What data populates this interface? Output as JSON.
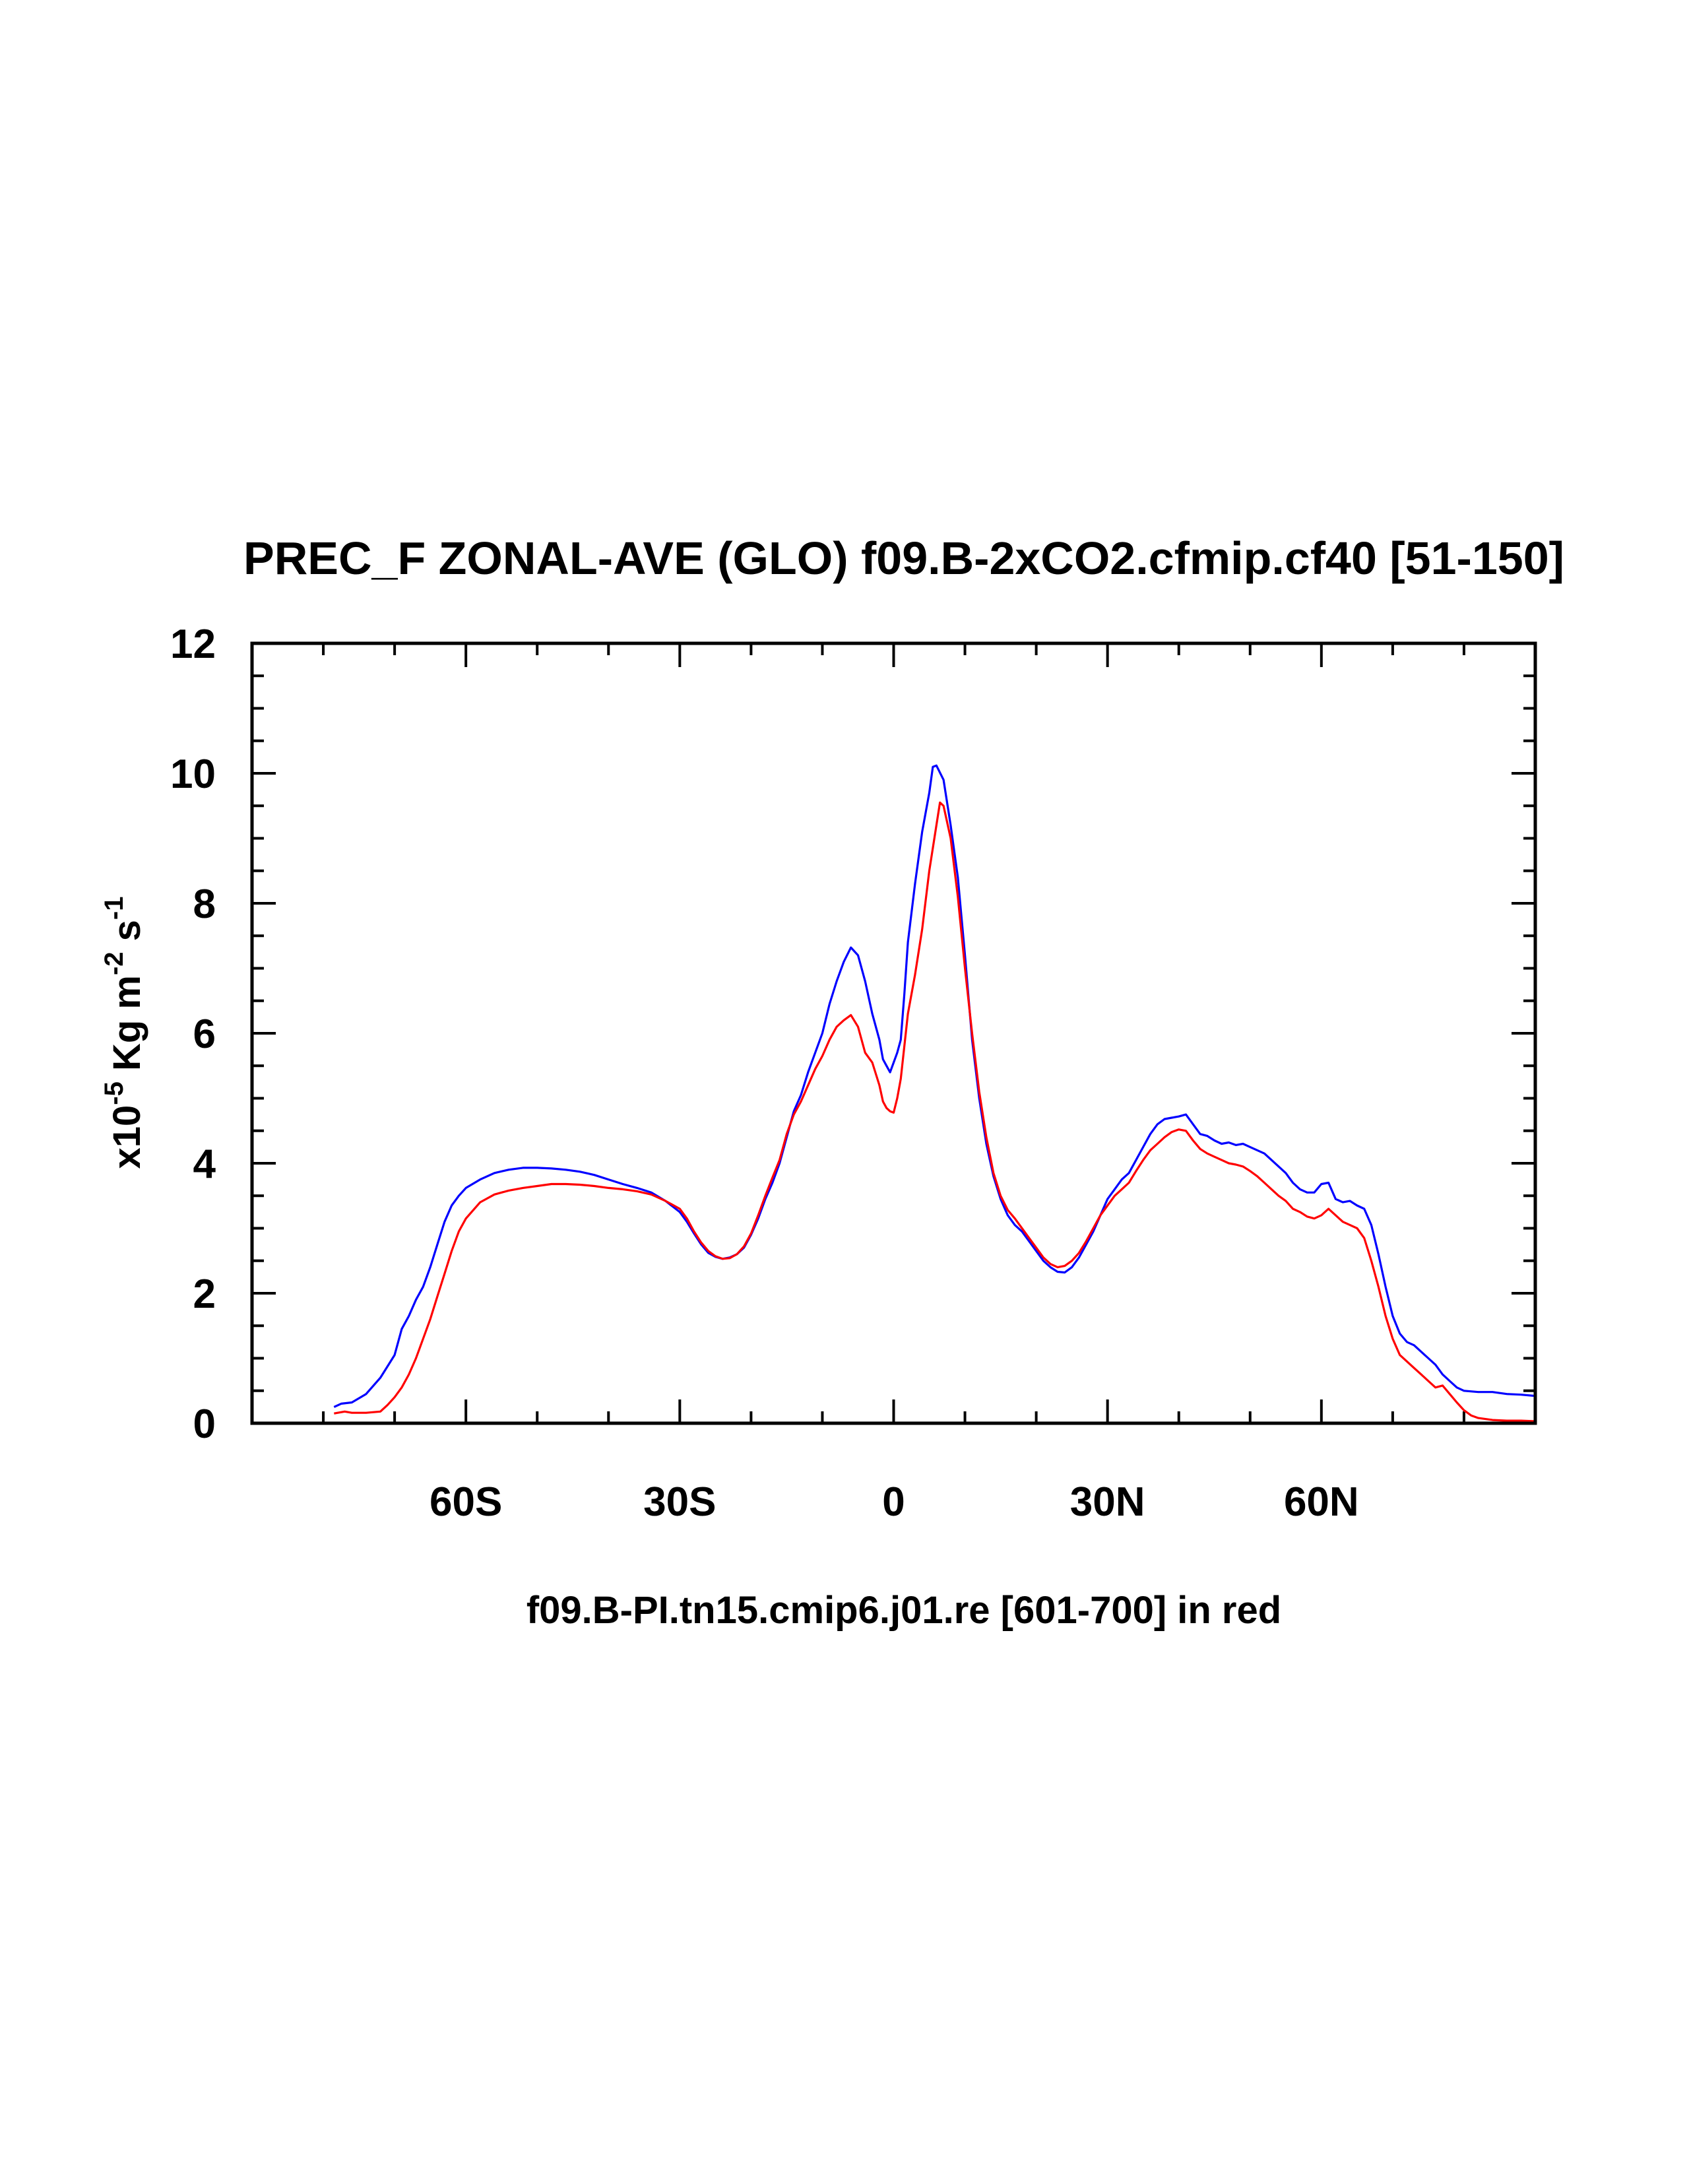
{
  "chart_data": {
    "type": "line",
    "title": "PREC_F ZONAL-AVE (GLO) f09.B-2xCO2.cfmip.cf40 [51-150]",
    "ylabel_parts": {
      "prefix": "x10",
      "exp1": "-5",
      "mid": " Kg m",
      "exp2": "-2",
      "mid2": " s",
      "exp3": "-1"
    },
    "xlabel": "f09.B-PI.tn15.cmip6.j01.re [601-700] in red",
    "xlim": [
      -90,
      90
    ],
    "ylim": [
      0,
      12
    ],
    "x_ticks": [
      {
        "value": -60,
        "label": "60S"
      },
      {
        "value": -30,
        "label": "30S"
      },
      {
        "value": 0,
        "label": "0"
      },
      {
        "value": 30,
        "label": "30N"
      },
      {
        "value": 60,
        "label": "60N"
      }
    ],
    "y_ticks": [
      {
        "value": 0,
        "label": "0"
      },
      {
        "value": 2,
        "label": "2"
      },
      {
        "value": 4,
        "label": "4"
      },
      {
        "value": 6,
        "label": "6"
      },
      {
        "value": 8,
        "label": "8"
      },
      {
        "value": 10,
        "label": "10"
      },
      {
        "value": 12,
        "label": "12"
      }
    ],
    "grid": false,
    "series": [
      {
        "color": "#0000ff",
        "points": [
          [
            -78.5,
            0.25
          ],
          [
            -77.5,
            0.3
          ],
          [
            -76,
            0.32
          ],
          [
            -74,
            0.45
          ],
          [
            -72,
            0.7
          ],
          [
            -70,
            1.05
          ],
          [
            -69,
            1.45
          ],
          [
            -68,
            1.65
          ],
          [
            -67,
            1.9
          ],
          [
            -66,
            2.1
          ],
          [
            -65,
            2.4
          ],
          [
            -64,
            2.75
          ],
          [
            -63,
            3.1
          ],
          [
            -62,
            3.35
          ],
          [
            -61,
            3.5
          ],
          [
            -60,
            3.62
          ],
          [
            -58,
            3.75
          ],
          [
            -56,
            3.85
          ],
          [
            -54,
            3.9
          ],
          [
            -52,
            3.93
          ],
          [
            -50,
            3.93
          ],
          [
            -48,
            3.92
          ],
          [
            -46,
            3.9
          ],
          [
            -44,
            3.87
          ],
          [
            -42,
            3.82
          ],
          [
            -40,
            3.75
          ],
          [
            -38,
            3.68
          ],
          [
            -36,
            3.62
          ],
          [
            -34,
            3.55
          ],
          [
            -32,
            3.42
          ],
          [
            -30,
            3.25
          ],
          [
            -29,
            3.1
          ],
          [
            -28,
            2.92
          ],
          [
            -27,
            2.75
          ],
          [
            -26,
            2.62
          ],
          [
            -25,
            2.56
          ],
          [
            -24,
            2.53
          ],
          [
            -23,
            2.55
          ],
          [
            -22,
            2.6
          ],
          [
            -21,
            2.7
          ],
          [
            -20,
            2.9
          ],
          [
            -19,
            3.15
          ],
          [
            -18,
            3.45
          ],
          [
            -17,
            3.7
          ],
          [
            -16,
            4.0
          ],
          [
            -15,
            4.4
          ],
          [
            -14,
            4.8
          ],
          [
            -13,
            5.05
          ],
          [
            -12,
            5.4
          ],
          [
            -11,
            5.7
          ],
          [
            -10,
            6.0
          ],
          [
            -9,
            6.45
          ],
          [
            -8,
            6.8
          ],
          [
            -7,
            7.1
          ],
          [
            -6,
            7.32
          ],
          [
            -5,
            7.2
          ],
          [
            -4,
            6.8
          ],
          [
            -3,
            6.3
          ],
          [
            -2,
            5.9
          ],
          [
            -1.5,
            5.6
          ],
          [
            -1,
            5.5
          ],
          [
            -0.5,
            5.4
          ],
          [
            0,
            5.55
          ],
          [
            0.5,
            5.7
          ],
          [
            1,
            5.9
          ],
          [
            1.5,
            6.6
          ],
          [
            2,
            7.4
          ],
          [
            3,
            8.3
          ],
          [
            4,
            9.1
          ],
          [
            5,
            9.7
          ],
          [
            5.5,
            10.1
          ],
          [
            6,
            10.12
          ],
          [
            7,
            9.9
          ],
          [
            8,
            9.2
          ],
          [
            9,
            8.4
          ],
          [
            10,
            7.2
          ],
          [
            11,
            5.9
          ],
          [
            12,
            5.0
          ],
          [
            13,
            4.3
          ],
          [
            14,
            3.8
          ],
          [
            15,
            3.45
          ],
          [
            16,
            3.2
          ],
          [
            17,
            3.05
          ],
          [
            18,
            2.95
          ],
          [
            19,
            2.8
          ],
          [
            20,
            2.65
          ],
          [
            21,
            2.5
          ],
          [
            22,
            2.4
          ],
          [
            23,
            2.33
          ],
          [
            24,
            2.32
          ],
          [
            25,
            2.4
          ],
          [
            26,
            2.55
          ],
          [
            27,
            2.75
          ],
          [
            28,
            2.95
          ],
          [
            29,
            3.2
          ],
          [
            30,
            3.45
          ],
          [
            31,
            3.6
          ],
          [
            32,
            3.75
          ],
          [
            33,
            3.85
          ],
          [
            34,
            4.05
          ],
          [
            35,
            4.25
          ],
          [
            36,
            4.45
          ],
          [
            37,
            4.6
          ],
          [
            38,
            4.68
          ],
          [
            39,
            4.7
          ],
          [
            40,
            4.72
          ],
          [
            41,
            4.75
          ],
          [
            42,
            4.6
          ],
          [
            43,
            4.45
          ],
          [
            44,
            4.42
          ],
          [
            45,
            4.35
          ],
          [
            46,
            4.3
          ],
          [
            47,
            4.32
          ],
          [
            48,
            4.28
          ],
          [
            49,
            4.3
          ],
          [
            50,
            4.25
          ],
          [
            51,
            4.2
          ],
          [
            52,
            4.15
          ],
          [
            53,
            4.05
          ],
          [
            54,
            3.95
          ],
          [
            55,
            3.85
          ],
          [
            56,
            3.7
          ],
          [
            57,
            3.6
          ],
          [
            58,
            3.55
          ],
          [
            59,
            3.55
          ],
          [
            60,
            3.68
          ],
          [
            61,
            3.7
          ],
          [
            62,
            3.45
          ],
          [
            63,
            3.4
          ],
          [
            64,
            3.42
          ],
          [
            65,
            3.35
          ],
          [
            66,
            3.3
          ],
          [
            67,
            3.05
          ],
          [
            68,
            2.6
          ],
          [
            69,
            2.1
          ],
          [
            70,
            1.65
          ],
          [
            71,
            1.38
          ],
          [
            72,
            1.25
          ],
          [
            73,
            1.2
          ],
          [
            74,
            1.1
          ],
          [
            75,
            1.0
          ],
          [
            76,
            0.9
          ],
          [
            77,
            0.75
          ],
          [
            78,
            0.65
          ],
          [
            79,
            0.55
          ],
          [
            80,
            0.5
          ],
          [
            82,
            0.48
          ],
          [
            84,
            0.48
          ],
          [
            86,
            0.45
          ],
          [
            88,
            0.44
          ],
          [
            90,
            0.42
          ]
        ]
      },
      {
        "color": "#ff0000",
        "points": [
          [
            -78.5,
            0.15
          ],
          [
            -77,
            0.18
          ],
          [
            -76,
            0.16
          ],
          [
            -74,
            0.16
          ],
          [
            -72,
            0.18
          ],
          [
            -71,
            0.28
          ],
          [
            -70,
            0.4
          ],
          [
            -69,
            0.55
          ],
          [
            -68,
            0.75
          ],
          [
            -67,
            1.0
          ],
          [
            -66,
            1.3
          ],
          [
            -65,
            1.6
          ],
          [
            -64,
            1.95
          ],
          [
            -63,
            2.3
          ],
          [
            -62,
            2.65
          ],
          [
            -61,
            2.95
          ],
          [
            -60,
            3.15
          ],
          [
            -58,
            3.4
          ],
          [
            -56,
            3.52
          ],
          [
            -54,
            3.58
          ],
          [
            -52,
            3.62
          ],
          [
            -50,
            3.65
          ],
          [
            -48,
            3.68
          ],
          [
            -46,
            3.68
          ],
          [
            -44,
            3.67
          ],
          [
            -42,
            3.65
          ],
          [
            -40,
            3.62
          ],
          [
            -38,
            3.6
          ],
          [
            -36,
            3.57
          ],
          [
            -34,
            3.52
          ],
          [
            -32,
            3.42
          ],
          [
            -30,
            3.3
          ],
          [
            -29,
            3.15
          ],
          [
            -28,
            2.95
          ],
          [
            -27,
            2.78
          ],
          [
            -26,
            2.65
          ],
          [
            -25,
            2.57
          ],
          [
            -24,
            2.53
          ],
          [
            -23,
            2.54
          ],
          [
            -22,
            2.6
          ],
          [
            -21,
            2.72
          ],
          [
            -20,
            2.92
          ],
          [
            -19,
            3.2
          ],
          [
            -18,
            3.5
          ],
          [
            -17,
            3.78
          ],
          [
            -16,
            4.05
          ],
          [
            -15,
            4.45
          ],
          [
            -14,
            4.75
          ],
          [
            -13,
            4.95
          ],
          [
            -12,
            5.2
          ],
          [
            -11,
            5.45
          ],
          [
            -10,
            5.65
          ],
          [
            -9,
            5.9
          ],
          [
            -8,
            6.1
          ],
          [
            -7,
            6.2
          ],
          [
            -6,
            6.28
          ],
          [
            -5,
            6.1
          ],
          [
            -4,
            5.7
          ],
          [
            -3,
            5.55
          ],
          [
            -2,
            5.2
          ],
          [
            -1.5,
            4.95
          ],
          [
            -1,
            4.85
          ],
          [
            -0.5,
            4.8
          ],
          [
            0,
            4.78
          ],
          [
            0.5,
            5.0
          ],
          [
            1,
            5.3
          ],
          [
            1.5,
            5.8
          ],
          [
            2,
            6.3
          ],
          [
            3,
            6.9
          ],
          [
            4,
            7.6
          ],
          [
            5,
            8.5
          ],
          [
            6,
            9.2
          ],
          [
            6.5,
            9.55
          ],
          [
            7,
            9.5
          ],
          [
            8,
            9.0
          ],
          [
            9,
            8.1
          ],
          [
            10,
            7.0
          ],
          [
            11,
            6.0
          ],
          [
            12,
            5.1
          ],
          [
            13,
            4.4
          ],
          [
            14,
            3.85
          ],
          [
            15,
            3.5
          ],
          [
            16,
            3.28
          ],
          [
            17,
            3.15
          ],
          [
            18,
            3.0
          ],
          [
            19,
            2.85
          ],
          [
            20,
            2.7
          ],
          [
            21,
            2.55
          ],
          [
            22,
            2.45
          ],
          [
            23,
            2.4
          ],
          [
            24,
            2.42
          ],
          [
            25,
            2.5
          ],
          [
            26,
            2.62
          ],
          [
            27,
            2.8
          ],
          [
            28,
            3.0
          ],
          [
            29,
            3.2
          ],
          [
            30,
            3.35
          ],
          [
            31,
            3.5
          ],
          [
            32,
            3.6
          ],
          [
            33,
            3.7
          ],
          [
            34,
            3.88
          ],
          [
            35,
            4.05
          ],
          [
            36,
            4.2
          ],
          [
            37,
            4.3
          ],
          [
            38,
            4.4
          ],
          [
            39,
            4.48
          ],
          [
            40,
            4.52
          ],
          [
            41,
            4.5
          ],
          [
            42,
            4.35
          ],
          [
            43,
            4.22
          ],
          [
            44,
            4.15
          ],
          [
            45,
            4.1
          ],
          [
            46,
            4.05
          ],
          [
            47,
            4.0
          ],
          [
            48,
            3.98
          ],
          [
            49,
            3.95
          ],
          [
            50,
            3.88
          ],
          [
            51,
            3.8
          ],
          [
            52,
            3.7
          ],
          [
            53,
            3.6
          ],
          [
            54,
            3.5
          ],
          [
            55,
            3.42
          ],
          [
            56,
            3.3
          ],
          [
            57,
            3.25
          ],
          [
            58,
            3.18
          ],
          [
            59,
            3.15
          ],
          [
            60,
            3.2
          ],
          [
            61,
            3.3
          ],
          [
            62,
            3.2
          ],
          [
            63,
            3.1
          ],
          [
            64,
            3.05
          ],
          [
            65,
            3.0
          ],
          [
            66,
            2.85
          ],
          [
            67,
            2.5
          ],
          [
            68,
            2.1
          ],
          [
            69,
            1.65
          ],
          [
            70,
            1.3
          ],
          [
            71,
            1.05
          ],
          [
            72,
            0.95
          ],
          [
            73,
            0.85
          ],
          [
            74,
            0.75
          ],
          [
            75,
            0.65
          ],
          [
            76,
            0.55
          ],
          [
            77,
            0.58
          ],
          [
            78,
            0.45
          ],
          [
            79,
            0.32
          ],
          [
            80,
            0.2
          ],
          [
            81,
            0.12
          ],
          [
            82,
            0.08
          ],
          [
            84,
            0.05
          ],
          [
            86,
            0.04
          ],
          [
            88,
            0.04
          ],
          [
            90,
            0.03
          ]
        ]
      }
    ]
  }
}
